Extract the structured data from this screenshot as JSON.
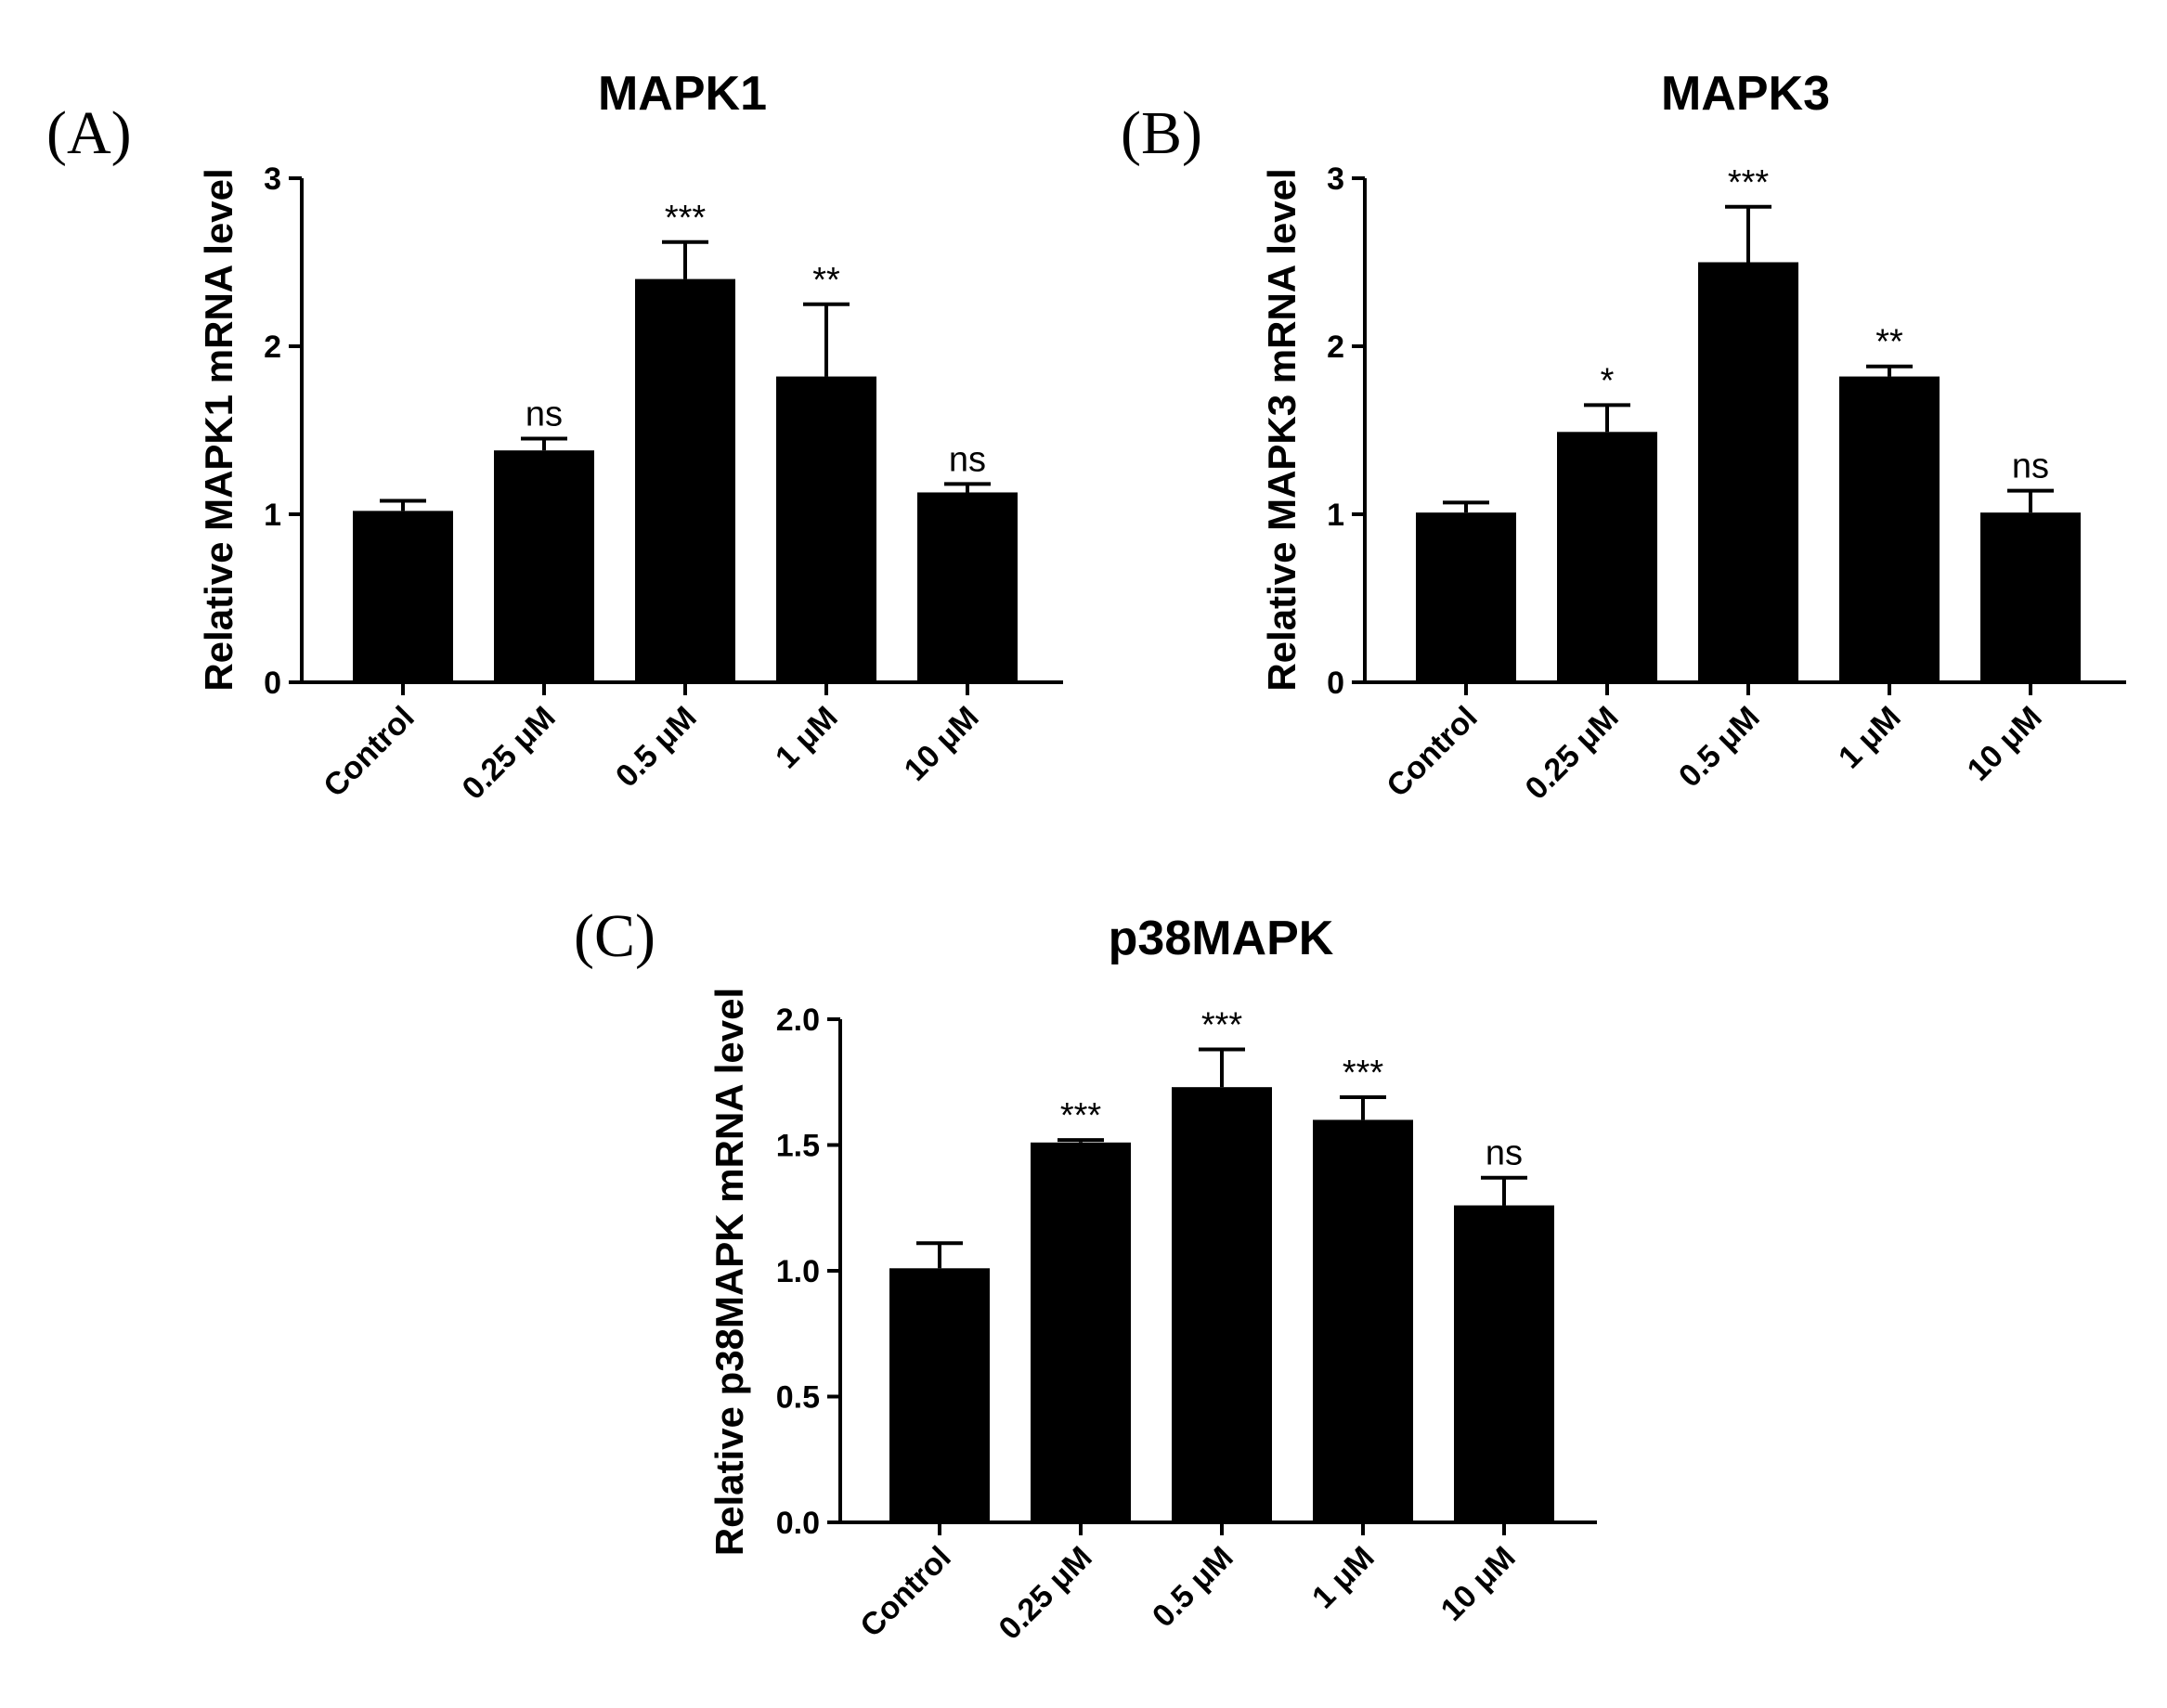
{
  "chart_data": [
    {
      "type": "bar",
      "panel": "(A)",
      "title": "MAPK1",
      "ylabel": "Relative MAPK1 mRNA  level",
      "xlabel": "",
      "categories": [
        "Control",
        "0.25 μM",
        "0.5 μM",
        "1 μM",
        "10 μM"
      ],
      "values": [
        1.02,
        1.38,
        2.4,
        1.82,
        1.13
      ],
      "errors": [
        0.06,
        0.07,
        0.22,
        0.43,
        0.05
      ],
      "significance": [
        "",
        "ns",
        "***",
        "**",
        "ns"
      ],
      "ylim": [
        0,
        3
      ],
      "yticks": [
        0,
        1,
        2,
        3
      ],
      "ytick_labels": [
        "0",
        "1",
        "2",
        "3"
      ],
      "color": "#000000",
      "grid": false
    },
    {
      "type": "bar",
      "panel": "(B)",
      "title": "MAPK3",
      "ylabel": "Relative MAPK3 mRNA  level",
      "xlabel": "",
      "categories": [
        "Control",
        "0.25 μM",
        "0.5 μM",
        "1 μM",
        "10 μM"
      ],
      "values": [
        1.01,
        1.49,
        2.5,
        1.82,
        1.01
      ],
      "errors": [
        0.06,
        0.16,
        0.33,
        0.06,
        0.13
      ],
      "significance": [
        "",
        "*",
        "***",
        "**",
        "ns"
      ],
      "ylim": [
        0,
        3
      ],
      "yticks": [
        0,
        1,
        2,
        3
      ],
      "ytick_labels": [
        "0",
        "1",
        "2",
        "3"
      ],
      "color": "#000000",
      "grid": false
    },
    {
      "type": "bar",
      "panel": "(C)",
      "title": "p38MAPK",
      "ylabel": "Relative p38MAPK mRNA  level",
      "xlabel": "",
      "categories": [
        "Control",
        "0.25 μM",
        "0.5 μM",
        "1 μM",
        "10 μM"
      ],
      "values": [
        1.01,
        1.51,
        1.73,
        1.6,
        1.26
      ],
      "errors": [
        0.1,
        0.01,
        0.15,
        0.09,
        0.11
      ],
      "significance": [
        "",
        "***",
        "***",
        "***",
        "ns"
      ],
      "ylim": [
        0,
        2
      ],
      "yticks": [
        0,
        0.5,
        1.0,
        1.5,
        2.0
      ],
      "ytick_labels": [
        "0.0",
        "0.5",
        "1.0",
        "1.5",
        "2.0"
      ],
      "color": "#000000",
      "grid": false
    }
  ]
}
